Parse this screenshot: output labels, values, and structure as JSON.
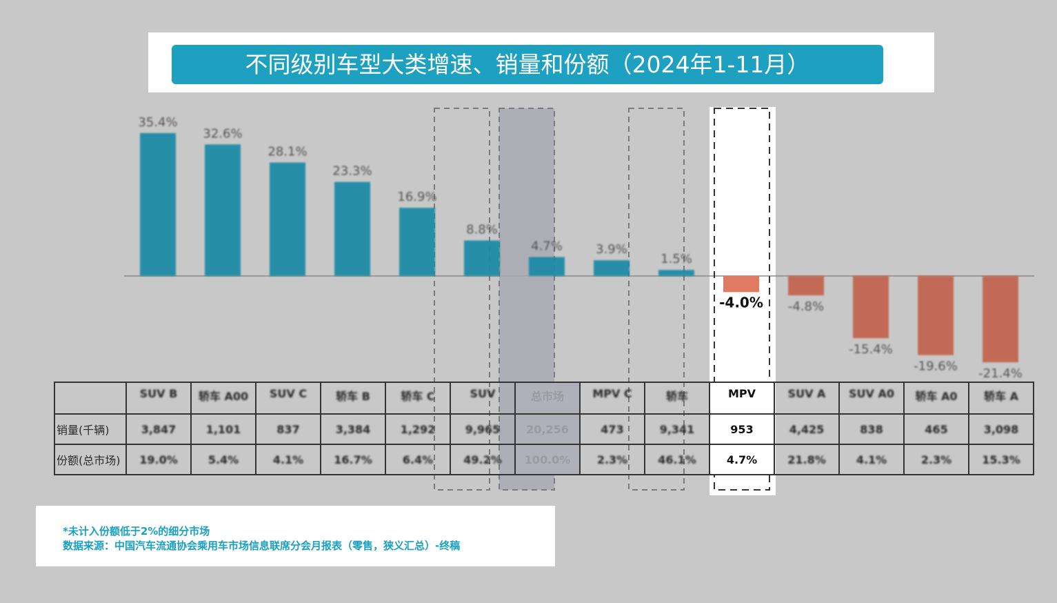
{
  "title": "不同级别车型大类增速、销量和份额（2024年1-11月）",
  "colors": {
    "positive": "#1a8aa6",
    "negative": "#c2634d",
    "highlight_negative": "#e07a63",
    "title_bg": "#1ea0c0",
    "note_text": "#1aa0c0"
  },
  "chart_data": {
    "type": "bar",
    "categories": [
      "SUV B",
      "轿车 A00",
      "SUV C",
      "轿车 B",
      "轿车 C",
      "SUV",
      "总市场",
      "MPV C",
      "轿车",
      "MPV",
      "SUV A",
      "SUV A0",
      "轿车 A0",
      "轿车 A"
    ],
    "series": [
      {
        "values": [
          35.4,
          32.6,
          28.1,
          23.3,
          16.9,
          8.8,
          4.7,
          3.9,
          1.5,
          -4.0,
          -4.8,
          -15.4,
          -19.6,
          -21.4
        ]
      }
    ],
    "data_labels": [
      "35.4%",
      "32.6%",
      "28.1%",
      "23.3%",
      "16.9%",
      "8.8%",
      "4.7%",
      "3.9%",
      "1.5%",
      "-4.0%",
      "-4.8%",
      "-15.4%",
      "-19.6%",
      "-21.4%"
    ],
    "highlighted_category": "MPV",
    "dashed_groups": [
      "SUV",
      "总市场",
      "轿车",
      "MPV"
    ],
    "xlabel": "",
    "ylabel": ""
  },
  "table": {
    "row_headers": [
      "销量(千辆)",
      "份额(总市场)"
    ],
    "sales": [
      "3,847",
      "1,101",
      "837",
      "3,384",
      "1,292",
      "9,965",
      "20,256",
      "473",
      "9,341",
      "953",
      "4,425",
      "838",
      "465",
      "3,098"
    ],
    "shares": [
      "19.0%",
      "5.4%",
      "4.1%",
      "16.7%",
      "6.4%",
      "49.2%",
      "100.0%",
      "2.3%",
      "46.1%",
      "4.7%",
      "21.8%",
      "4.1%",
      "2.3%",
      "15.3%"
    ]
  },
  "notes": {
    "line1": "*未计入份额低于2%的细分市场",
    "line2": "数据来源：中国汽车流通协会乘用车市场信息联席分会月报表（零售，狭义汇总）-终稿"
  }
}
